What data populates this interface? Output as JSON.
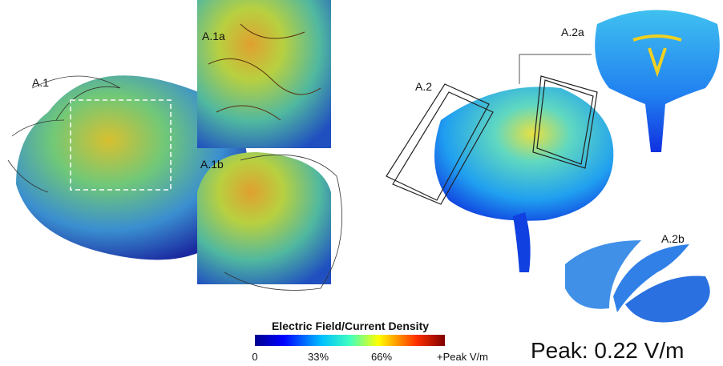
{
  "panels": {
    "a1": "A.1",
    "a1a": "A.1a",
    "a1b": "A.1b",
    "a2": "A.2",
    "a2a": "A.2a",
    "a2b": "A.2b"
  },
  "colorbar": {
    "title": "Electric Field/Current Density",
    "ticks": [
      "0",
      "33%",
      "66%",
      "+Peak V/m"
    ]
  },
  "peak": "Peak: 0.22 V/m"
}
